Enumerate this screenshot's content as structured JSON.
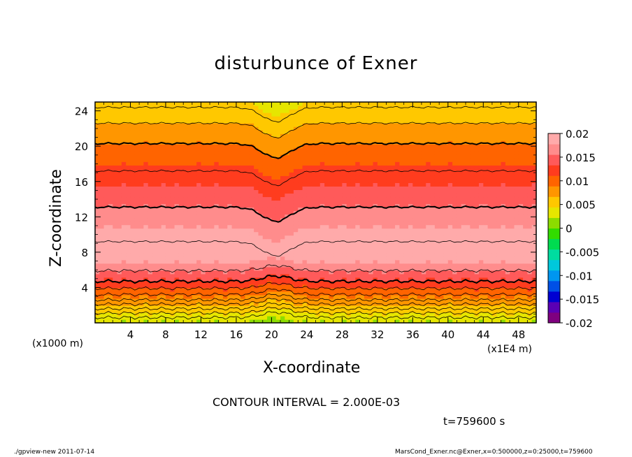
{
  "chart_data": {
    "type": "heatmap",
    "title": "disturbunce of Exner",
    "xlabel": "X-coordinate",
    "ylabel": "Z-coordinate",
    "x_unit_left": "(x1000 m)",
    "x_unit_right": "(x1E4 m)",
    "x_ticks": [
      "4",
      "8",
      "12",
      "16",
      "20",
      "24",
      "28",
      "32",
      "36",
      "40",
      "44",
      "48"
    ],
    "y_ticks": [
      "4",
      "8",
      "12",
      "16",
      "20",
      "24"
    ],
    "xlim": [
      0,
      50
    ],
    "ylim": [
      0,
      25
    ],
    "colorbar": {
      "ticks": [
        "0.02",
        "0.015",
        "0.01",
        "0.005",
        "0",
        "-0.005",
        "-0.01",
        "-0.015",
        "-0.02"
      ],
      "range": [
        -0.02,
        0.02
      ],
      "colors": [
        "#7f007f",
        "#5a00b4",
        "#0000d2",
        "#0050e6",
        "#0096f0",
        "#00c8dc",
        "#00dca0",
        "#00dc50",
        "#32dc00",
        "#8cdc00",
        "#e6e600",
        "#ffc800",
        "#ff9600",
        "#ff6400",
        "#ff3c1e",
        "#ff5a5a",
        "#ff8c8c",
        "#ffaaaa"
      ]
    },
    "contour_interval": "CONTOUR INTERVAL = 2.000E-03",
    "time": "t=759600 s",
    "footer_left": "./gpview-new  2011-07-14",
    "footer_right": "MarsCond_Exner.nc@Exner,x=0:500000,z=0:25000,t=759600"
  }
}
